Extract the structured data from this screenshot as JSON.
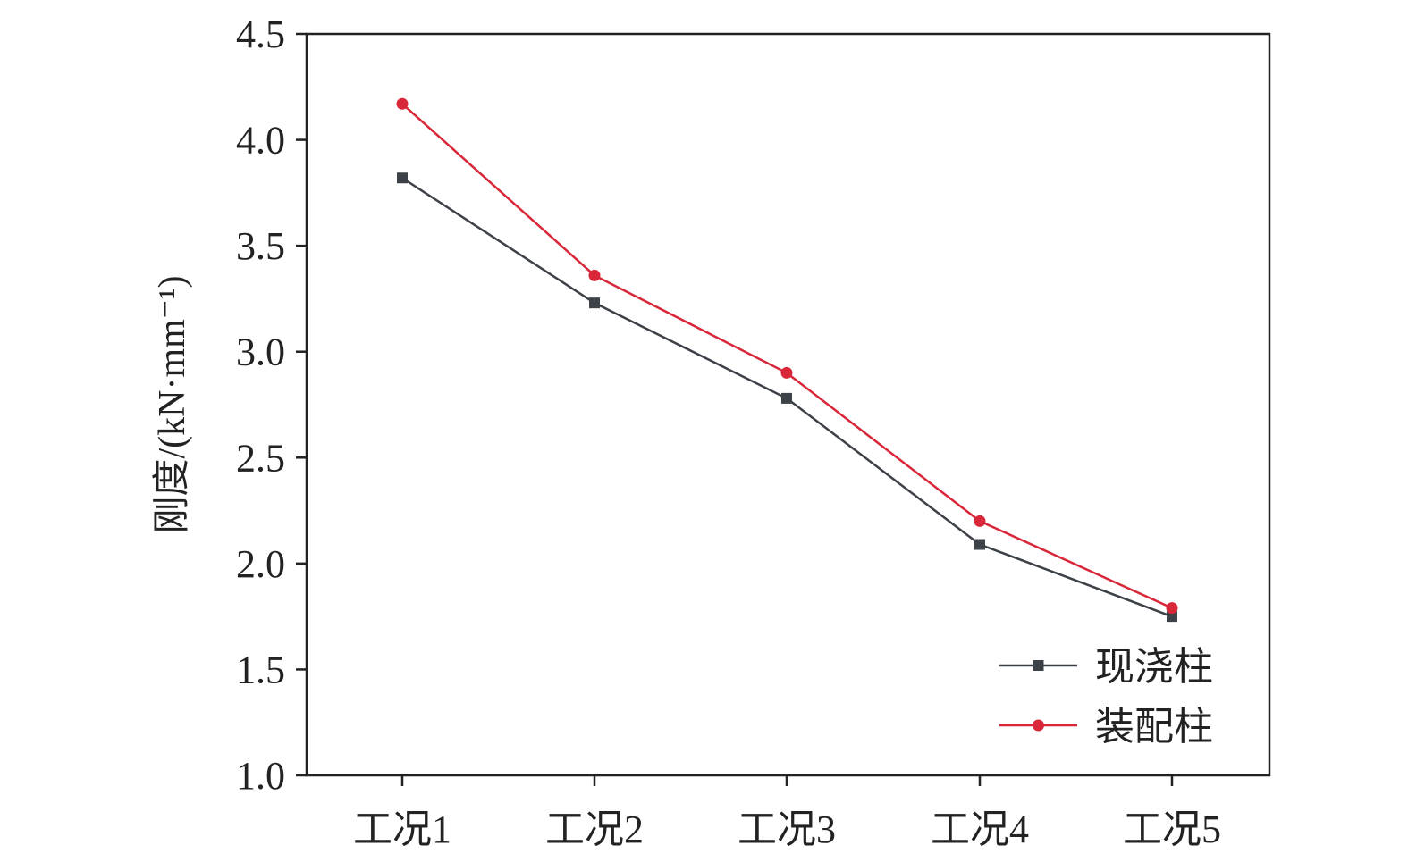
{
  "chart_data": {
    "type": "line",
    "title": "",
    "xlabel": "",
    "ylabel": "刚度/(kN·mm⁻¹)",
    "categories": [
      "工况1",
      "工况2",
      "工况3",
      "工况4",
      "工况5"
    ],
    "ylim": [
      1.0,
      4.5
    ],
    "yticks": [
      "1.0",
      "1.5",
      "2.0",
      "2.5",
      "3.0",
      "3.5",
      "4.0",
      "4.5"
    ],
    "grid": false,
    "legend_position": "bottom-right",
    "series": [
      {
        "name": "现浇柱",
        "values": [
          3.82,
          3.23,
          2.78,
          2.09,
          1.75
        ],
        "color": "#3d4148",
        "marker": "square"
      },
      {
        "name": "装配柱",
        "values": [
          4.17,
          3.36,
          2.9,
          2.2,
          1.79
        ],
        "color": "#d9273a",
        "marker": "circle"
      }
    ]
  }
}
